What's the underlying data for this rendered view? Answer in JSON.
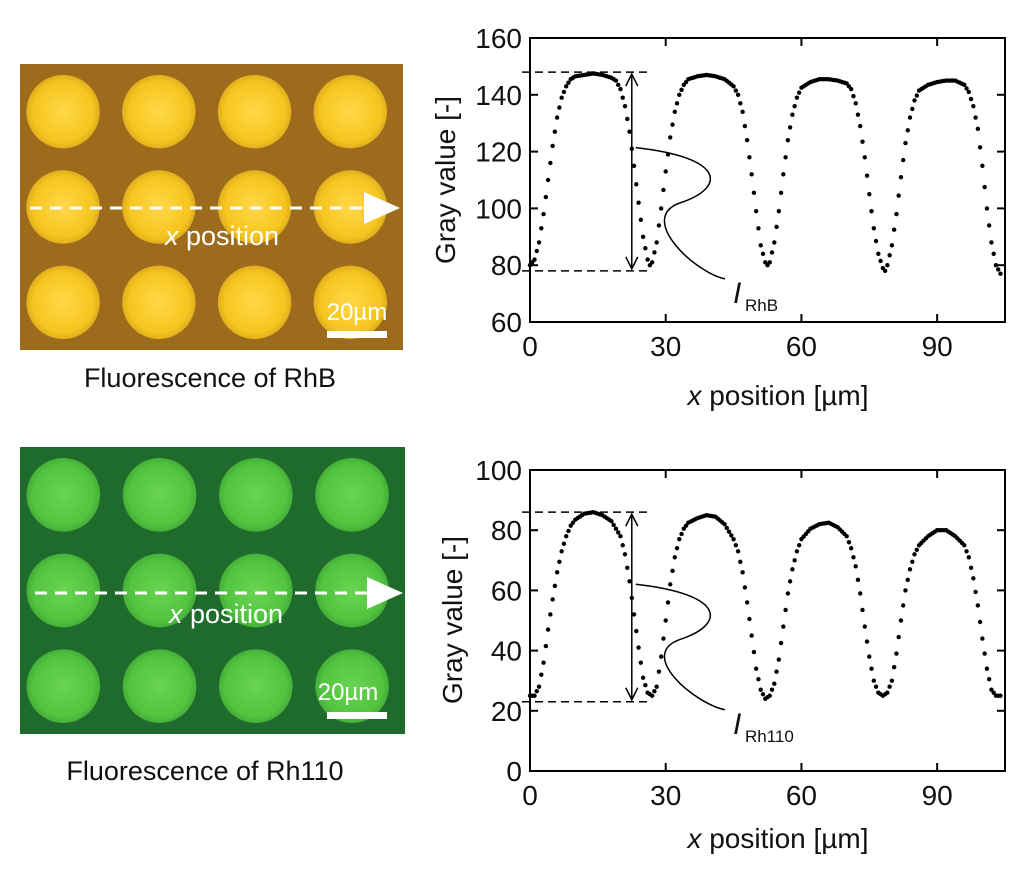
{
  "panels": [
    {
      "image": {
        "arrow_label": "x position",
        "scale_label": "20µm",
        "caption": "Fluorescence of RhB",
        "bg_color": "#9c6b1c",
        "dot_color": "#f6c51e",
        "dot_glow": "#ffd84a",
        "rows": 3,
        "cols": 4
      },
      "annotation": {
        "symbol": "I",
        "subscript": "RhB",
        "top_value": 148,
        "bottom_value": 78,
        "x_value": 22.5
      }
    },
    {
      "image": {
        "arrow_label": "x position",
        "scale_label": "20µm",
        "caption": "Fluorescence of Rh110",
        "bg_color": "#1f6b2b",
        "dot_color": "#52c43f",
        "dot_glow": "#6ad552",
        "rows": 3,
        "cols": 4
      },
      "annotation": {
        "symbol": "I",
        "subscript": "Rh110",
        "top_value": 86,
        "bottom_value": 23,
        "x_value": 22.5
      }
    }
  ],
  "chart_data": [
    {
      "type": "scatter",
      "title": "",
      "xlabel": "x position [µm]",
      "ylabel": "Gray value [-]",
      "xlim": [
        0,
        105
      ],
      "ylim": [
        60,
        160
      ],
      "xticks": [
        0,
        30,
        60,
        90
      ],
      "yticks": [
        60,
        80,
        100,
        120,
        140,
        160
      ],
      "marker_color": "#000000",
      "grid": false,
      "series": [
        {
          "points": [
            [
              0,
              80
            ],
            [
              1,
              82
            ],
            [
              2,
              88
            ],
            [
              3,
              98
            ],
            [
              4,
              110
            ],
            [
              5,
              122
            ],
            [
              6,
              132
            ],
            [
              7,
              139
            ],
            [
              8,
              143
            ],
            [
              9,
              145.5
            ],
            [
              10,
              146.5
            ],
            [
              12,
              147
            ],
            [
              14,
              147.5
            ],
            [
              16,
              147
            ],
            [
              18,
              146
            ],
            [
              19,
              145
            ],
            [
              20,
              142
            ],
            [
              21,
              136
            ],
            [
              22,
              127
            ],
            [
              23,
              115
            ],
            [
              24,
              102
            ],
            [
              25,
              90
            ],
            [
              26,
              82
            ],
            [
              26.5,
              80
            ],
            [
              27,
              81
            ],
            [
              28,
              88
            ],
            [
              29,
              100
            ],
            [
              30,
              113
            ],
            [
              31,
              125
            ],
            [
              32,
              134
            ],
            [
              33,
              140
            ],
            [
              34,
              143.5
            ],
            [
              35,
              145.5
            ],
            [
              37,
              146.5
            ],
            [
              39,
              147
            ],
            [
              41,
              146.5
            ],
            [
              43,
              145.5
            ],
            [
              45,
              143
            ],
            [
              46,
              140
            ],
            [
              47,
              134
            ],
            [
              48,
              124
            ],
            [
              49,
              112
            ],
            [
              50,
              99
            ],
            [
              51,
              87
            ],
            [
              52,
              81
            ],
            [
              52.5,
              80
            ],
            [
              53,
              81
            ],
            [
              54,
              88
            ],
            [
              55,
              99
            ],
            [
              56,
              112
            ],
            [
              57,
              124
            ],
            [
              58,
              133
            ],
            [
              59,
              139
            ],
            [
              60,
              142.5
            ],
            [
              62,
              144.5
            ],
            [
              64,
              145.5
            ],
            [
              66,
              145.5
            ],
            [
              68,
              145
            ],
            [
              70,
              144
            ],
            [
              71,
              142
            ],
            [
              72,
              137
            ],
            [
              73,
              129
            ],
            [
              74,
              118
            ],
            [
              75,
              105
            ],
            [
              76,
              93
            ],
            [
              77,
              84
            ],
            [
              78,
              79
            ],
            [
              78.5,
              78
            ],
            [
              79,
              80
            ],
            [
              80,
              87
            ],
            [
              81,
              98
            ],
            [
              82,
              111
            ],
            [
              83,
              123
            ],
            [
              84,
              132
            ],
            [
              85,
              138
            ],
            [
              86,
              141.5
            ],
            [
              88,
              143.5
            ],
            [
              90,
              144.5
            ],
            [
              92,
              145
            ],
            [
              94,
              145
            ],
            [
              96,
              143.5
            ],
            [
              97,
              141
            ],
            [
              98,
              136
            ],
            [
              99,
              128
            ],
            [
              100,
              115
            ],
            [
              101,
              100
            ],
            [
              102,
              88
            ],
            [
              103,
              80
            ],
            [
              104,
              77
            ]
          ]
        }
      ]
    },
    {
      "type": "scatter",
      "title": "",
      "xlabel": "x position [µm]",
      "ylabel": "Gray value [-]",
      "xlim": [
        0,
        105
      ],
      "ylim": [
        0,
        100
      ],
      "xticks": [
        0,
        30,
        60,
        90
      ],
      "yticks": [
        0,
        20,
        40,
        60,
        80,
        100
      ],
      "marker_color": "#000000",
      "grid": false,
      "series": [
        {
          "points": [
            [
              0,
              25
            ],
            [
              1,
              25
            ],
            [
              2,
              28
            ],
            [
              3,
              36
            ],
            [
              4,
              47
            ],
            [
              5,
              57
            ],
            [
              6,
              66
            ],
            [
              7,
              73
            ],
            [
              8,
              78
            ],
            [
              9,
              81.5
            ],
            [
              10,
              83.5
            ],
            [
              12,
              85.5
            ],
            [
              14,
              86
            ],
            [
              16,
              85
            ],
            [
              18,
              83
            ],
            [
              20,
              78
            ],
            [
              21,
              72
            ],
            [
              22,
              63
            ],
            [
              23,
              52
            ],
            [
              24,
              41
            ],
            [
              25,
              31
            ],
            [
              26,
              26
            ],
            [
              27,
              25
            ],
            [
              28,
              28
            ],
            [
              29,
              38
            ],
            [
              30,
              50
            ],
            [
              31,
              62
            ],
            [
              32,
              71
            ],
            [
              33,
              77
            ],
            [
              34,
              80.5
            ],
            [
              35,
              82.5
            ],
            [
              37,
              84
            ],
            [
              39,
              85
            ],
            [
              41,
              84.5
            ],
            [
              43,
              82
            ],
            [
              45,
              77
            ],
            [
              46,
              73
            ],
            [
              47,
              66
            ],
            [
              48,
              56
            ],
            [
              49,
              45
            ],
            [
              50,
              34
            ],
            [
              51,
              27
            ],
            [
              52,
              24
            ],
            [
              53,
              25
            ],
            [
              54,
              29
            ],
            [
              55,
              37
            ],
            [
              56,
              48
            ],
            [
              57,
              59
            ],
            [
              58,
              67
            ],
            [
              59,
              73
            ],
            [
              60,
              77
            ],
            [
              62,
              80.5
            ],
            [
              64,
              82
            ],
            [
              66,
              82.5
            ],
            [
              68,
              81
            ],
            [
              70,
              78
            ],
            [
              71,
              74
            ],
            [
              72,
              68
            ],
            [
              73,
              59
            ],
            [
              74,
              48
            ],
            [
              75,
              38
            ],
            [
              76,
              30
            ],
            [
              77,
              26
            ],
            [
              78,
              25
            ],
            [
              79,
              26
            ],
            [
              80,
              30
            ],
            [
              81,
              39
            ],
            [
              82,
              50
            ],
            [
              83,
              60
            ],
            [
              84,
              67
            ],
            [
              85,
              72
            ],
            [
              86,
              75
            ],
            [
              88,
              78
            ],
            [
              90,
              80
            ],
            [
              92,
              80
            ],
            [
              94,
              78
            ],
            [
              96,
              75
            ],
            [
              97,
              71
            ],
            [
              98,
              64
            ],
            [
              99,
              55
            ],
            [
              100,
              44
            ],
            [
              101,
              34
            ],
            [
              102,
              27
            ],
            [
              103,
              25
            ],
            [
              104,
              25
            ]
          ]
        }
      ]
    }
  ]
}
